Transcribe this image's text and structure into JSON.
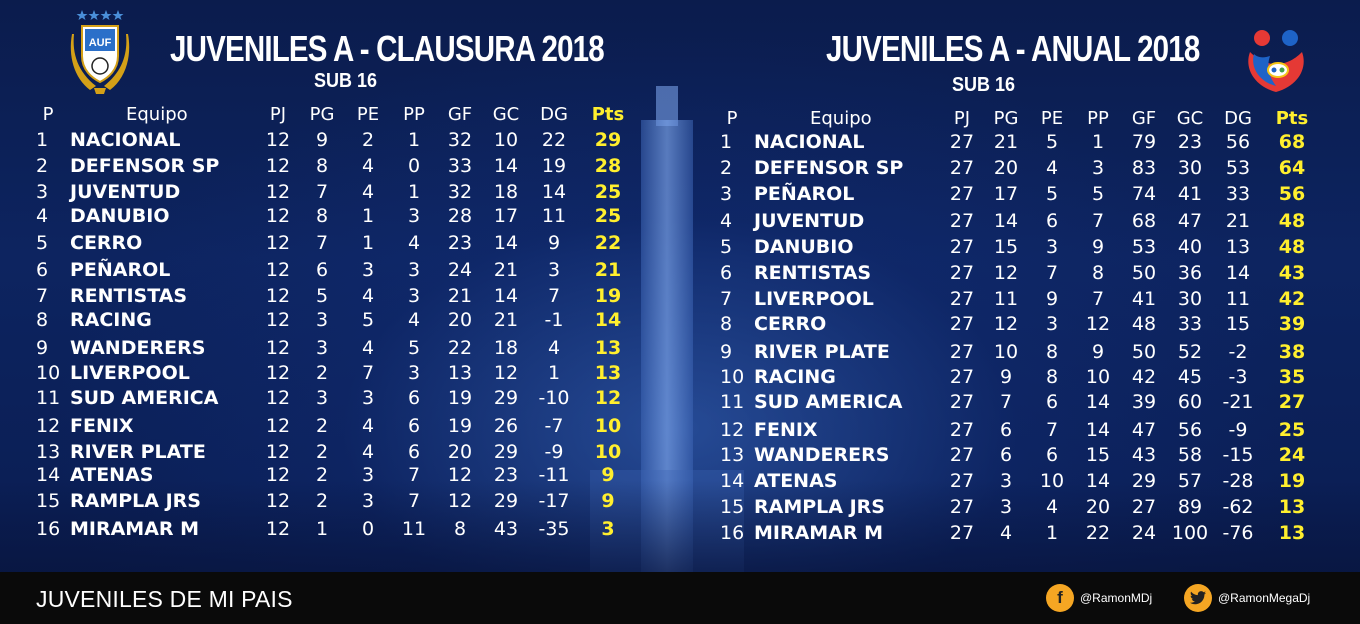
{
  "left": {
    "title": "JUVENILES A - CLAUSURA 2018",
    "subtitle": "SUB 16",
    "headers": {
      "p": "P",
      "team": "Equipo",
      "pj": "PJ",
      "pg": "PG",
      "pe": "PE",
      "pp": "PP",
      "gf": "GF",
      "gc": "GC",
      "dg": "DG",
      "pts": "Pts"
    },
    "rows": [
      [
        "1",
        "NACIONAL",
        "12",
        "9",
        "2",
        "1",
        "32",
        "10",
        "22",
        "29"
      ],
      [
        "2",
        "DEFENSOR SP",
        "12",
        "8",
        "4",
        "0",
        "33",
        "14",
        "19",
        "28"
      ],
      [
        "3",
        "JUVENTUD",
        "12",
        "7",
        "4",
        "1",
        "32",
        "18",
        "14",
        "25"
      ],
      [
        "4",
        "DANUBIO",
        "12",
        "8",
        "1",
        "3",
        "28",
        "17",
        "11",
        "25"
      ],
      [
        "5",
        "CERRO",
        "12",
        "7",
        "1",
        "4",
        "23",
        "14",
        "9",
        "22"
      ],
      [
        "6",
        "PEÑAROL",
        "12",
        "6",
        "3",
        "3",
        "24",
        "21",
        "3",
        "21"
      ],
      [
        "7",
        "RENTISTAS",
        "12",
        "5",
        "4",
        "3",
        "21",
        "14",
        "7",
        "19"
      ],
      [
        "8",
        "RACING",
        "12",
        "3",
        "5",
        "4",
        "20",
        "21",
        "-1",
        "14"
      ],
      [
        "9",
        "WANDERERS",
        "12",
        "3",
        "4",
        "5",
        "22",
        "18",
        "4",
        "13"
      ],
      [
        "10",
        "LIVERPOOL",
        "12",
        "2",
        "7",
        "3",
        "13",
        "12",
        "1",
        "13"
      ],
      [
        "11",
        "SUD AMERICA",
        "12",
        "3",
        "3",
        "6",
        "19",
        "29",
        "-10",
        "12"
      ],
      [
        "12",
        "FENIX",
        "12",
        "2",
        "4",
        "6",
        "19",
        "26",
        "-7",
        "10"
      ],
      [
        "13",
        "RIVER PLATE",
        "12",
        "2",
        "4",
        "6",
        "20",
        "29",
        "-9",
        "10"
      ],
      [
        "14",
        "ATENAS",
        "12",
        "2",
        "3",
        "7",
        "12",
        "23",
        "-11",
        "9"
      ],
      [
        "15",
        "RAMPLA JRS",
        "12",
        "2",
        "3",
        "7",
        "12",
        "29",
        "-17",
        "9"
      ],
      [
        "16",
        "MIRAMAR M",
        "12",
        "1",
        "0",
        "11",
        "8",
        "43",
        "-35",
        "3"
      ]
    ]
  },
  "right": {
    "title": "JUVENILES A - ANUAL 2018",
    "subtitle": "SUB 16",
    "headers": {
      "p": "P",
      "team": "Equipo",
      "pj": "PJ",
      "pg": "PG",
      "pe": "PE",
      "pp": "PP",
      "gf": "GF",
      "gc": "GC",
      "dg": "DG",
      "pts": "Pts"
    },
    "rows": [
      [
        "1",
        "NACIONAL",
        "27",
        "21",
        "5",
        "1",
        "79",
        "23",
        "56",
        "68"
      ],
      [
        "2",
        "DEFENSOR SP",
        "27",
        "20",
        "4",
        "3",
        "83",
        "30",
        "53",
        "64"
      ],
      [
        "3",
        "PEÑAROL",
        "27",
        "17",
        "5",
        "5",
        "74",
        "41",
        "33",
        "56"
      ],
      [
        "4",
        "JUVENTUD",
        "27",
        "14",
        "6",
        "7",
        "68",
        "47",
        "21",
        "48"
      ],
      [
        "5",
        "DANUBIO",
        "27",
        "15",
        "3",
        "9",
        "53",
        "40",
        "13",
        "48"
      ],
      [
        "6",
        "RENTISTAS",
        "27",
        "12",
        "7",
        "8",
        "50",
        "36",
        "14",
        "43"
      ],
      [
        "7",
        "LIVERPOOL",
        "27",
        "11",
        "9",
        "7",
        "41",
        "30",
        "11",
        "42"
      ],
      [
        "8",
        "CERRO",
        "27",
        "12",
        "3",
        "12",
        "48",
        "33",
        "15",
        "39"
      ],
      [
        "9",
        "RIVER PLATE",
        "27",
        "10",
        "8",
        "9",
        "50",
        "52",
        "-2",
        "38"
      ],
      [
        "10",
        "RACING",
        "27",
        "9",
        "8",
        "10",
        "42",
        "45",
        "-3",
        "35"
      ],
      [
        "11",
        "SUD AMERICA",
        "27",
        "7",
        "6",
        "14",
        "39",
        "60",
        "-21",
        "27"
      ],
      [
        "12",
        "FENIX",
        "27",
        "6",
        "7",
        "14",
        "47",
        "56",
        "-9",
        "25"
      ],
      [
        "13",
        "WANDERERS",
        "27",
        "6",
        "6",
        "15",
        "43",
        "58",
        "-15",
        "24"
      ],
      [
        "14",
        "ATENAS",
        "27",
        "3",
        "10",
        "14",
        "29",
        "57",
        "-28",
        "19"
      ],
      [
        "15",
        "RAMPLA JRS",
        "27",
        "3",
        "4",
        "20",
        "27",
        "89",
        "-62",
        "13"
      ],
      [
        "16",
        "MIRAMAR M",
        "27",
        "4",
        "1",
        "22",
        "24",
        "100",
        "-76",
        "13"
      ]
    ]
  },
  "footer": {
    "title": "JUVENILES DE MI PAIS",
    "facebook": "@RamonMDj",
    "twitter": "@RamonMegaDj"
  },
  "logos": {
    "auf_text": "AUF",
    "auf_icon": "auf-crest-icon",
    "ofi_icon": "ofi-logo-icon"
  },
  "colors": {
    "points": "#ffef2e",
    "accent": "#f5a623",
    "background": "#0d2460"
  }
}
